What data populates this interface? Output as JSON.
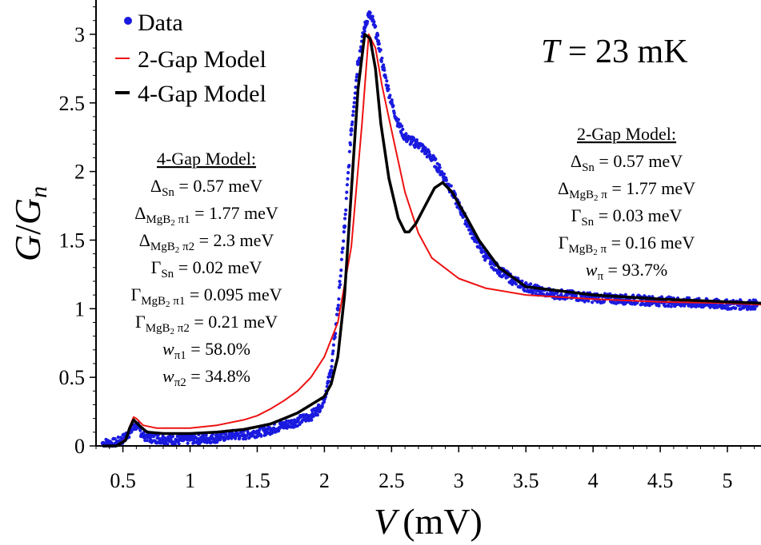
{
  "chart_data": {
    "type": "line",
    "xlabel_italic": "V",
    "xlabel_unit": "(mV)",
    "ylabel_parts": [
      "G",
      "/",
      "G",
      "n"
    ],
    "xlim": [
      0.3,
      5.25
    ],
    "ylim": [
      0,
      3.25
    ],
    "xticks": [
      "0.5",
      "1",
      "1.5",
      "2",
      "2.5",
      "3",
      "3.5",
      "4",
      "4.5",
      "5"
    ],
    "xtick_values": [
      0.5,
      1,
      1.5,
      2,
      2.5,
      3,
      3.5,
      4,
      4.5,
      5
    ],
    "yticks": [
      "0",
      "0.5",
      "1",
      "1.5",
      "2",
      "2.5",
      "3"
    ],
    "ytick_values": [
      0,
      0.5,
      1,
      1.5,
      2,
      2.5,
      3
    ],
    "temperature_label": {
      "italic": "T",
      "text": " = 23 mK"
    },
    "legend": [
      {
        "label": "Data",
        "color": "#1a1adf",
        "marker": "dot"
      },
      {
        "label": "2-Gap Model",
        "color": "#ee1111",
        "marker": "line"
      },
      {
        "label": "4-Gap Model",
        "color": "#000000",
        "marker": "line"
      }
    ],
    "series": [
      {
        "name": "Data",
        "color": "#1a1adf",
        "x": [
          0.35,
          0.4,
          0.45,
          0.5,
          0.55,
          0.6,
          0.65,
          0.7,
          0.8,
          0.9,
          1.0,
          1.1,
          1.2,
          1.3,
          1.4,
          1.5,
          1.6,
          1.7,
          1.8,
          1.9,
          1.95,
          2.0,
          2.05,
          2.1,
          2.15,
          2.2,
          2.25,
          2.3,
          2.33,
          2.36,
          2.4,
          2.45,
          2.5,
          2.55,
          2.6,
          2.65,
          2.7,
          2.75,
          2.8,
          2.9,
          3.0,
          3.1,
          3.2,
          3.3,
          3.4,
          3.5,
          3.6,
          3.7,
          3.8,
          4.0,
          4.2,
          4.4,
          4.6,
          4.8,
          5.0,
          5.2
        ],
        "y": [
          0.02,
          0.02,
          0.02,
          0.05,
          0.1,
          0.15,
          0.08,
          0.06,
          0.05,
          0.04,
          0.05,
          0.05,
          0.06,
          0.08,
          0.08,
          0.1,
          0.12,
          0.15,
          0.18,
          0.22,
          0.26,
          0.35,
          0.55,
          1.0,
          1.6,
          2.3,
          2.8,
          3.05,
          3.15,
          3.1,
          2.95,
          2.7,
          2.5,
          2.35,
          2.25,
          2.22,
          2.2,
          2.15,
          2.1,
          1.95,
          1.75,
          1.55,
          1.38,
          1.28,
          1.21,
          1.16,
          1.13,
          1.11,
          1.1,
          1.08,
          1.07,
          1.06,
          1.05,
          1.04,
          1.03,
          1.03
        ]
      },
      {
        "name": "2-Gap Model",
        "color": "#ee1111",
        "x": [
          0.35,
          0.45,
          0.52,
          0.55,
          0.58,
          0.6,
          0.65,
          0.75,
          0.9,
          1.0,
          1.2,
          1.4,
          1.5,
          1.6,
          1.7,
          1.8,
          1.9,
          2.0,
          2.1,
          2.2,
          2.28,
          2.33,
          2.38,
          2.43,
          2.5,
          2.6,
          2.7,
          2.8,
          3.0,
          3.2,
          3.5,
          4.0,
          4.5,
          5.0,
          5.25
        ],
        "y": [
          0.0,
          0.0,
          0.05,
          0.14,
          0.21,
          0.2,
          0.15,
          0.13,
          0.13,
          0.13,
          0.15,
          0.19,
          0.22,
          0.27,
          0.33,
          0.4,
          0.5,
          0.65,
          0.9,
          1.45,
          2.35,
          3.0,
          2.9,
          2.62,
          2.3,
          1.85,
          1.55,
          1.37,
          1.22,
          1.15,
          1.1,
          1.07,
          1.05,
          1.04,
          1.03
        ]
      },
      {
        "name": "4-Gap Model",
        "color": "#000000",
        "x": [
          0.35,
          0.45,
          0.52,
          0.55,
          0.58,
          0.62,
          0.68,
          0.8,
          1.0,
          1.2,
          1.4,
          1.5,
          1.6,
          1.7,
          1.8,
          1.9,
          2.0,
          2.05,
          2.1,
          2.15,
          2.2,
          2.25,
          2.3,
          2.34,
          2.38,
          2.42,
          2.48,
          2.55,
          2.6,
          2.63,
          2.68,
          2.75,
          2.82,
          2.88,
          2.95,
          3.05,
          3.15,
          3.3,
          3.5,
          4.0,
          4.5,
          5.0,
          5.25
        ],
        "y": [
          0.0,
          0.0,
          0.04,
          0.13,
          0.19,
          0.15,
          0.1,
          0.09,
          0.09,
          0.1,
          0.12,
          0.14,
          0.16,
          0.2,
          0.24,
          0.3,
          0.36,
          0.45,
          0.65,
          1.1,
          1.85,
          2.6,
          3.0,
          2.97,
          2.75,
          2.35,
          1.95,
          1.66,
          1.56,
          1.56,
          1.62,
          1.75,
          1.88,
          1.92,
          1.85,
          1.68,
          1.5,
          1.3,
          1.16,
          1.1,
          1.07,
          1.05,
          1.04
        ]
      }
    ],
    "annotations": {
      "four_gap": {
        "title": "4-Gap Model:",
        "lines": [
          {
            "sym": "Δ",
            "sub": "Sn",
            "tail": " = 0.57 meV"
          },
          {
            "sym": "Δ",
            "sub": "MgB",
            "sub2": "2",
            "sub3": " π1",
            "tail": " = 1.77 meV"
          },
          {
            "sym": "Δ",
            "sub": "MgB",
            "sub2": "2",
            "sub3": " π2",
            "tail": " = 2.3 meV"
          },
          {
            "sym": "Γ",
            "sub": "Sn",
            "tail": " = 0.02 meV"
          },
          {
            "sym": "Γ",
            "sub": "MgB",
            "sub2": "2",
            "sub3": " π1",
            "tail": " = 0.095 meV"
          },
          {
            "sym": "Γ",
            "sub": "MgB",
            "sub2": "2",
            "sub3": " π2",
            "tail": " = 0.21 meV"
          },
          {
            "sym": "w",
            "sub": "π1",
            "tail": " = 58.0%"
          },
          {
            "sym": "w",
            "sub": "π2",
            "tail": " = 34.8%"
          }
        ]
      },
      "two_gap": {
        "title": "2-Gap Model:",
        "lines": [
          {
            "sym": "Δ",
            "sub": "Sn",
            "tail": " = 0.57 meV"
          },
          {
            "sym": "Δ",
            "sub": "MgB",
            "sub2": "2",
            "sub3": " π",
            "tail": " = 1.77 meV"
          },
          {
            "sym": "Γ",
            "sub": "Sn",
            "tail": " = 0.03 meV"
          },
          {
            "sym": "Γ",
            "sub": "MgB",
            "sub2": "2",
            "sub3": " π",
            "tail": " = 0.16 meV"
          },
          {
            "sym": "w",
            "sub": "π",
            "tail": " = 93.7%"
          }
        ]
      }
    }
  }
}
